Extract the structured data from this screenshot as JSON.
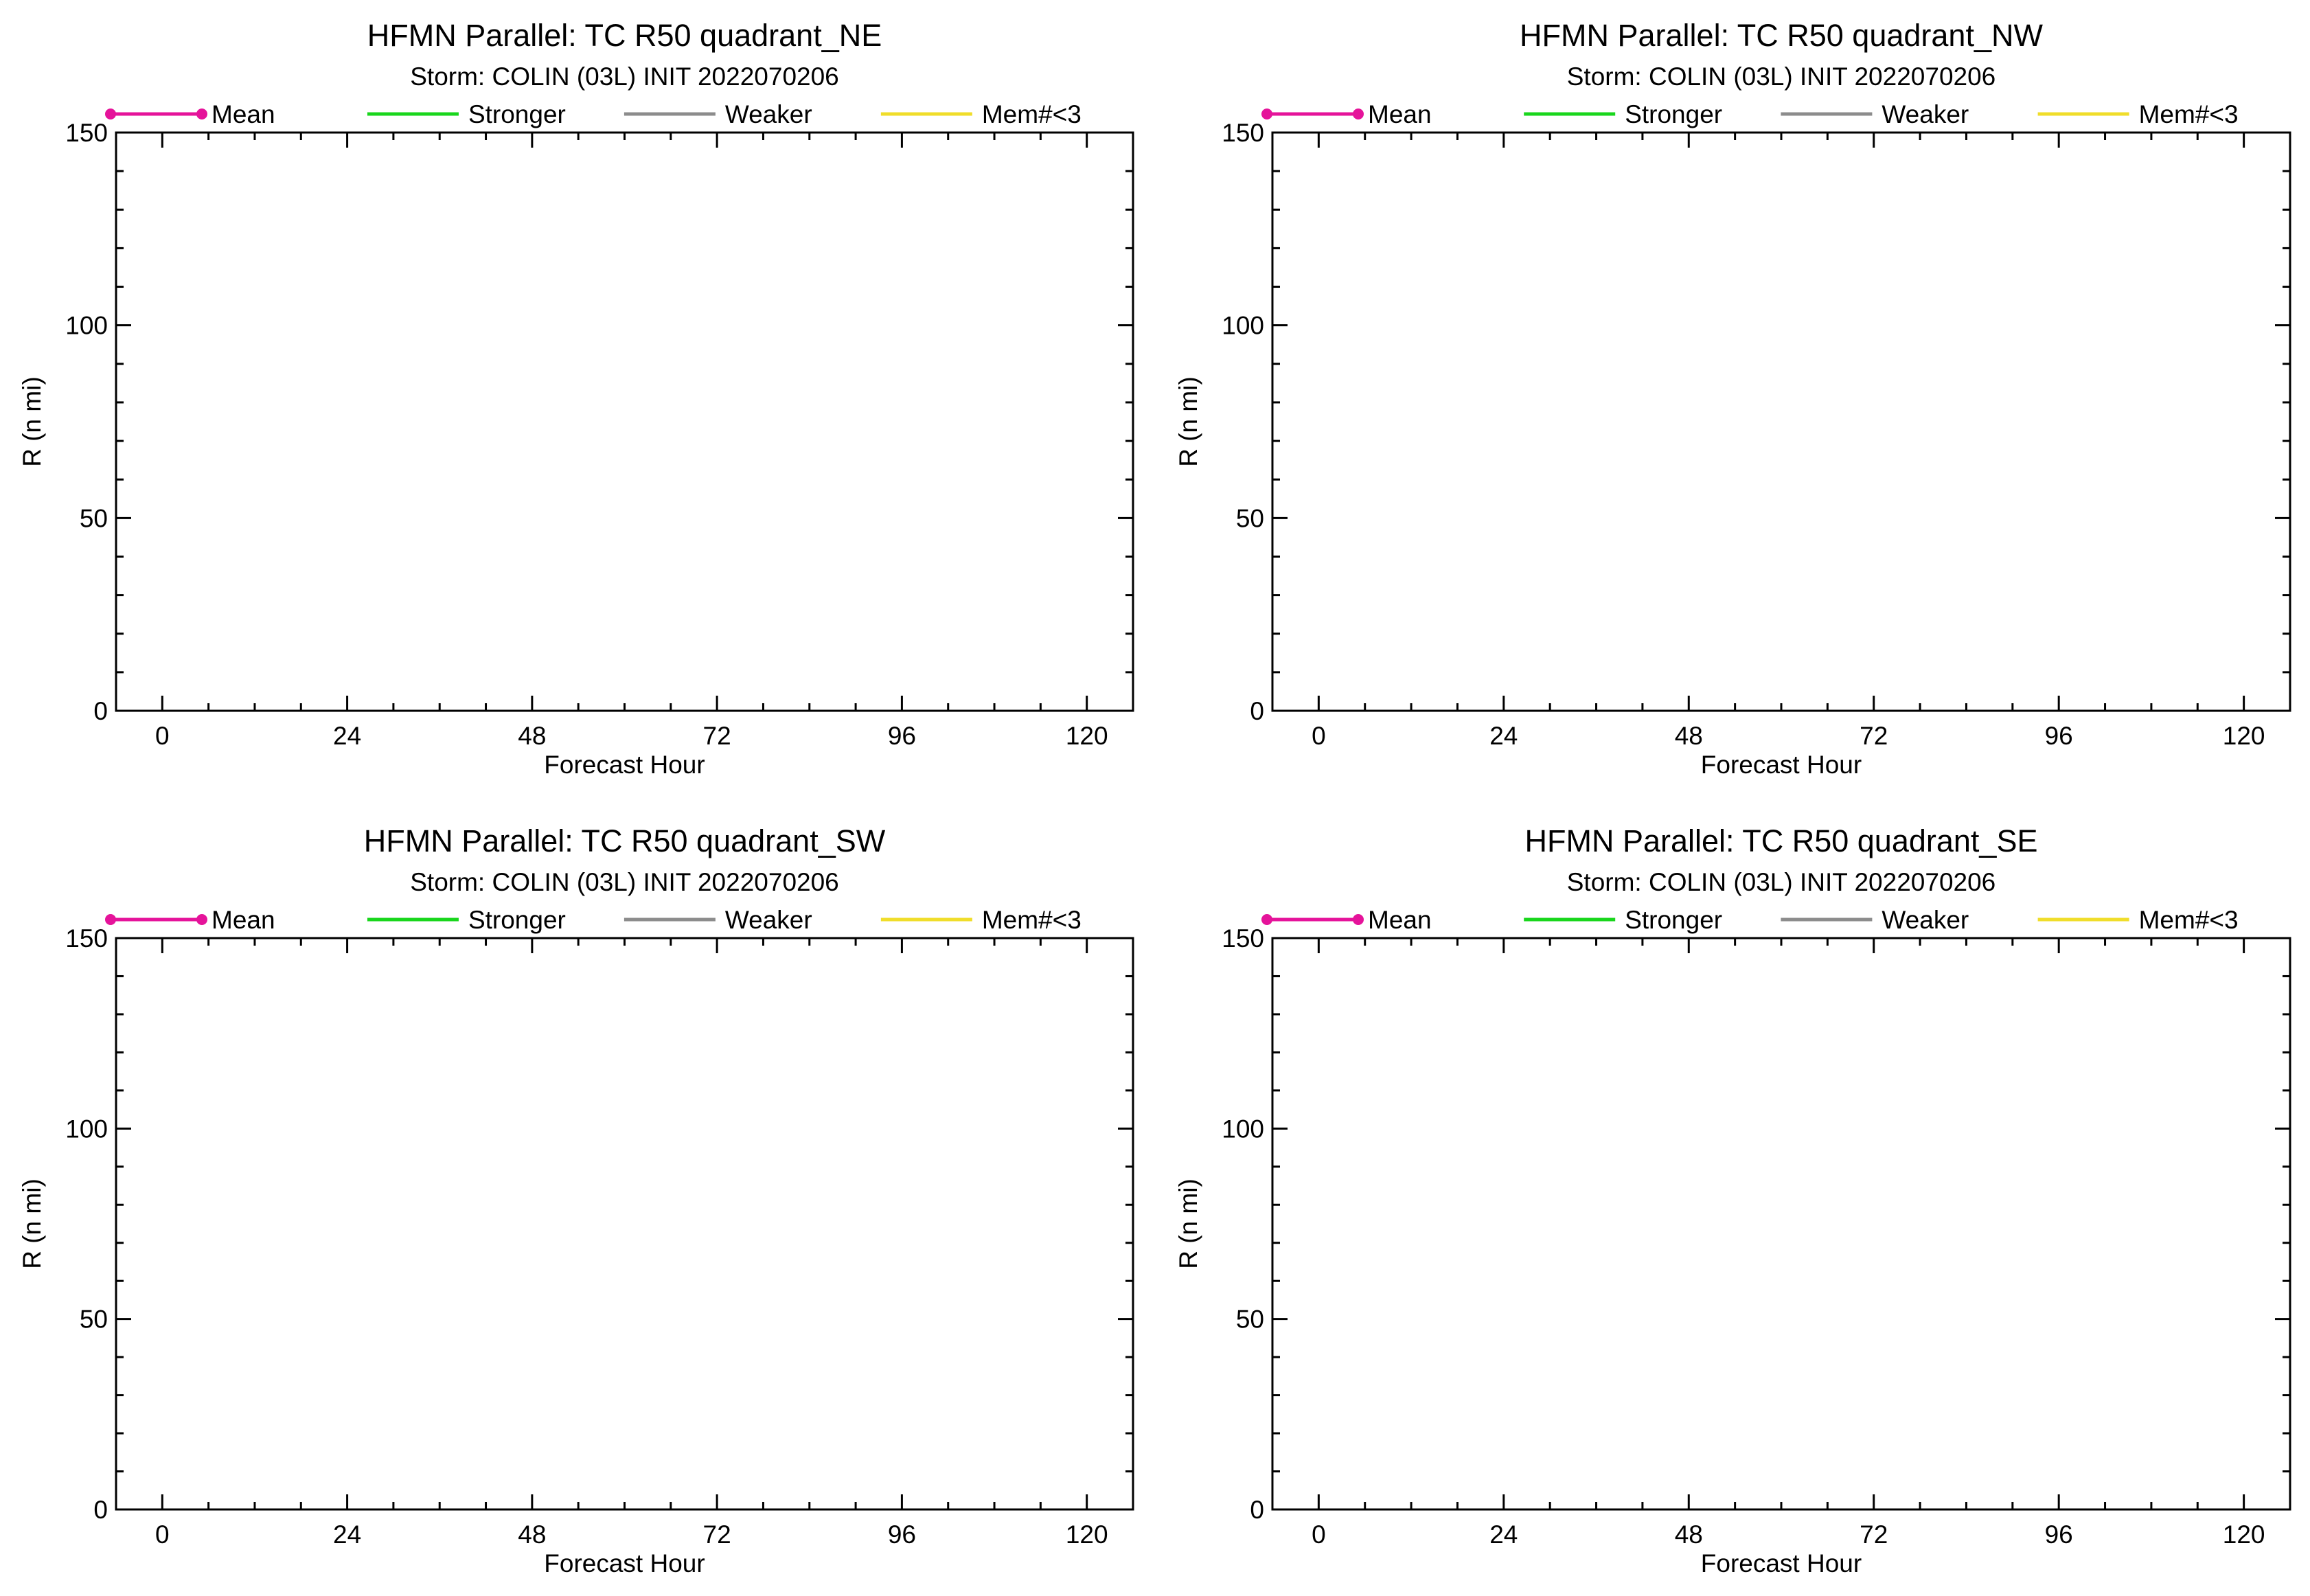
{
  "chart_data": [
    {
      "type": "line",
      "title": "HFMN Parallel: TC  R50 quadrant_NE",
      "subtitle": "Storm: COLIN (03L) INIT 2022070206",
      "xlabel": "Forecast Hour",
      "ylabel": "R (n mi)",
      "xlim": [
        -6,
        126
      ],
      "ylim": [
        0,
        150
      ],
      "xticks": [
        "0",
        "24",
        "48",
        "72",
        "96",
        "120"
      ],
      "yticks": [
        "0",
        "50",
        "100",
        "150"
      ],
      "legend": [
        "Mean",
        "Stronger",
        "Weaker",
        "Mem#<3"
      ],
      "legend_position": "top",
      "grid": false,
      "series": []
    },
    {
      "type": "line",
      "title": "HFMN Parallel: TC  R50 quadrant_NW",
      "subtitle": "Storm: COLIN (03L) INIT 2022070206",
      "xlabel": "Forecast Hour",
      "ylabel": "R (n mi)",
      "xlim": [
        -6,
        126
      ],
      "ylim": [
        0,
        150
      ],
      "xticks": [
        "0",
        "24",
        "48",
        "72",
        "96",
        "120"
      ],
      "yticks": [
        "0",
        "50",
        "100",
        "150"
      ],
      "legend": [
        "Mean",
        "Stronger",
        "Weaker",
        "Mem#<3"
      ],
      "legend_position": "top",
      "grid": false,
      "series": []
    },
    {
      "type": "line",
      "title": "HFMN Parallel: TC  R50 quadrant_SW",
      "subtitle": "Storm: COLIN (03L) INIT 2022070206",
      "xlabel": "Forecast Hour",
      "ylabel": "R (n mi)",
      "xlim": [
        -6,
        126
      ],
      "ylim": [
        0,
        150
      ],
      "xticks": [
        "0",
        "24",
        "48",
        "72",
        "96",
        "120"
      ],
      "yticks": [
        "0",
        "50",
        "100",
        "150"
      ],
      "legend": [
        "Mean",
        "Stronger",
        "Weaker",
        "Mem#<3"
      ],
      "legend_position": "top",
      "grid": false,
      "series": []
    },
    {
      "type": "line",
      "title": "HFMN Parallel: TC  R50 quadrant_SE",
      "subtitle": "Storm: COLIN (03L) INIT 2022070206",
      "xlabel": "Forecast Hour",
      "ylabel": "R (n mi)",
      "xlim": [
        -6,
        126
      ],
      "ylim": [
        0,
        150
      ],
      "xticks": [
        "0",
        "24",
        "48",
        "72",
        "96",
        "120"
      ],
      "yticks": [
        "0",
        "50",
        "100",
        "150"
      ],
      "legend": [
        "Mean",
        "Stronger",
        "Weaker",
        "Mem#<3"
      ],
      "legend_position": "top",
      "grid": false,
      "series": []
    }
  ],
  "legend_colors": {
    "Mean": "#e5139a",
    "Stronger": "#19d61c",
    "Weaker": "#8c8c8c",
    "Mem#<3": "#f0dd2a"
  }
}
